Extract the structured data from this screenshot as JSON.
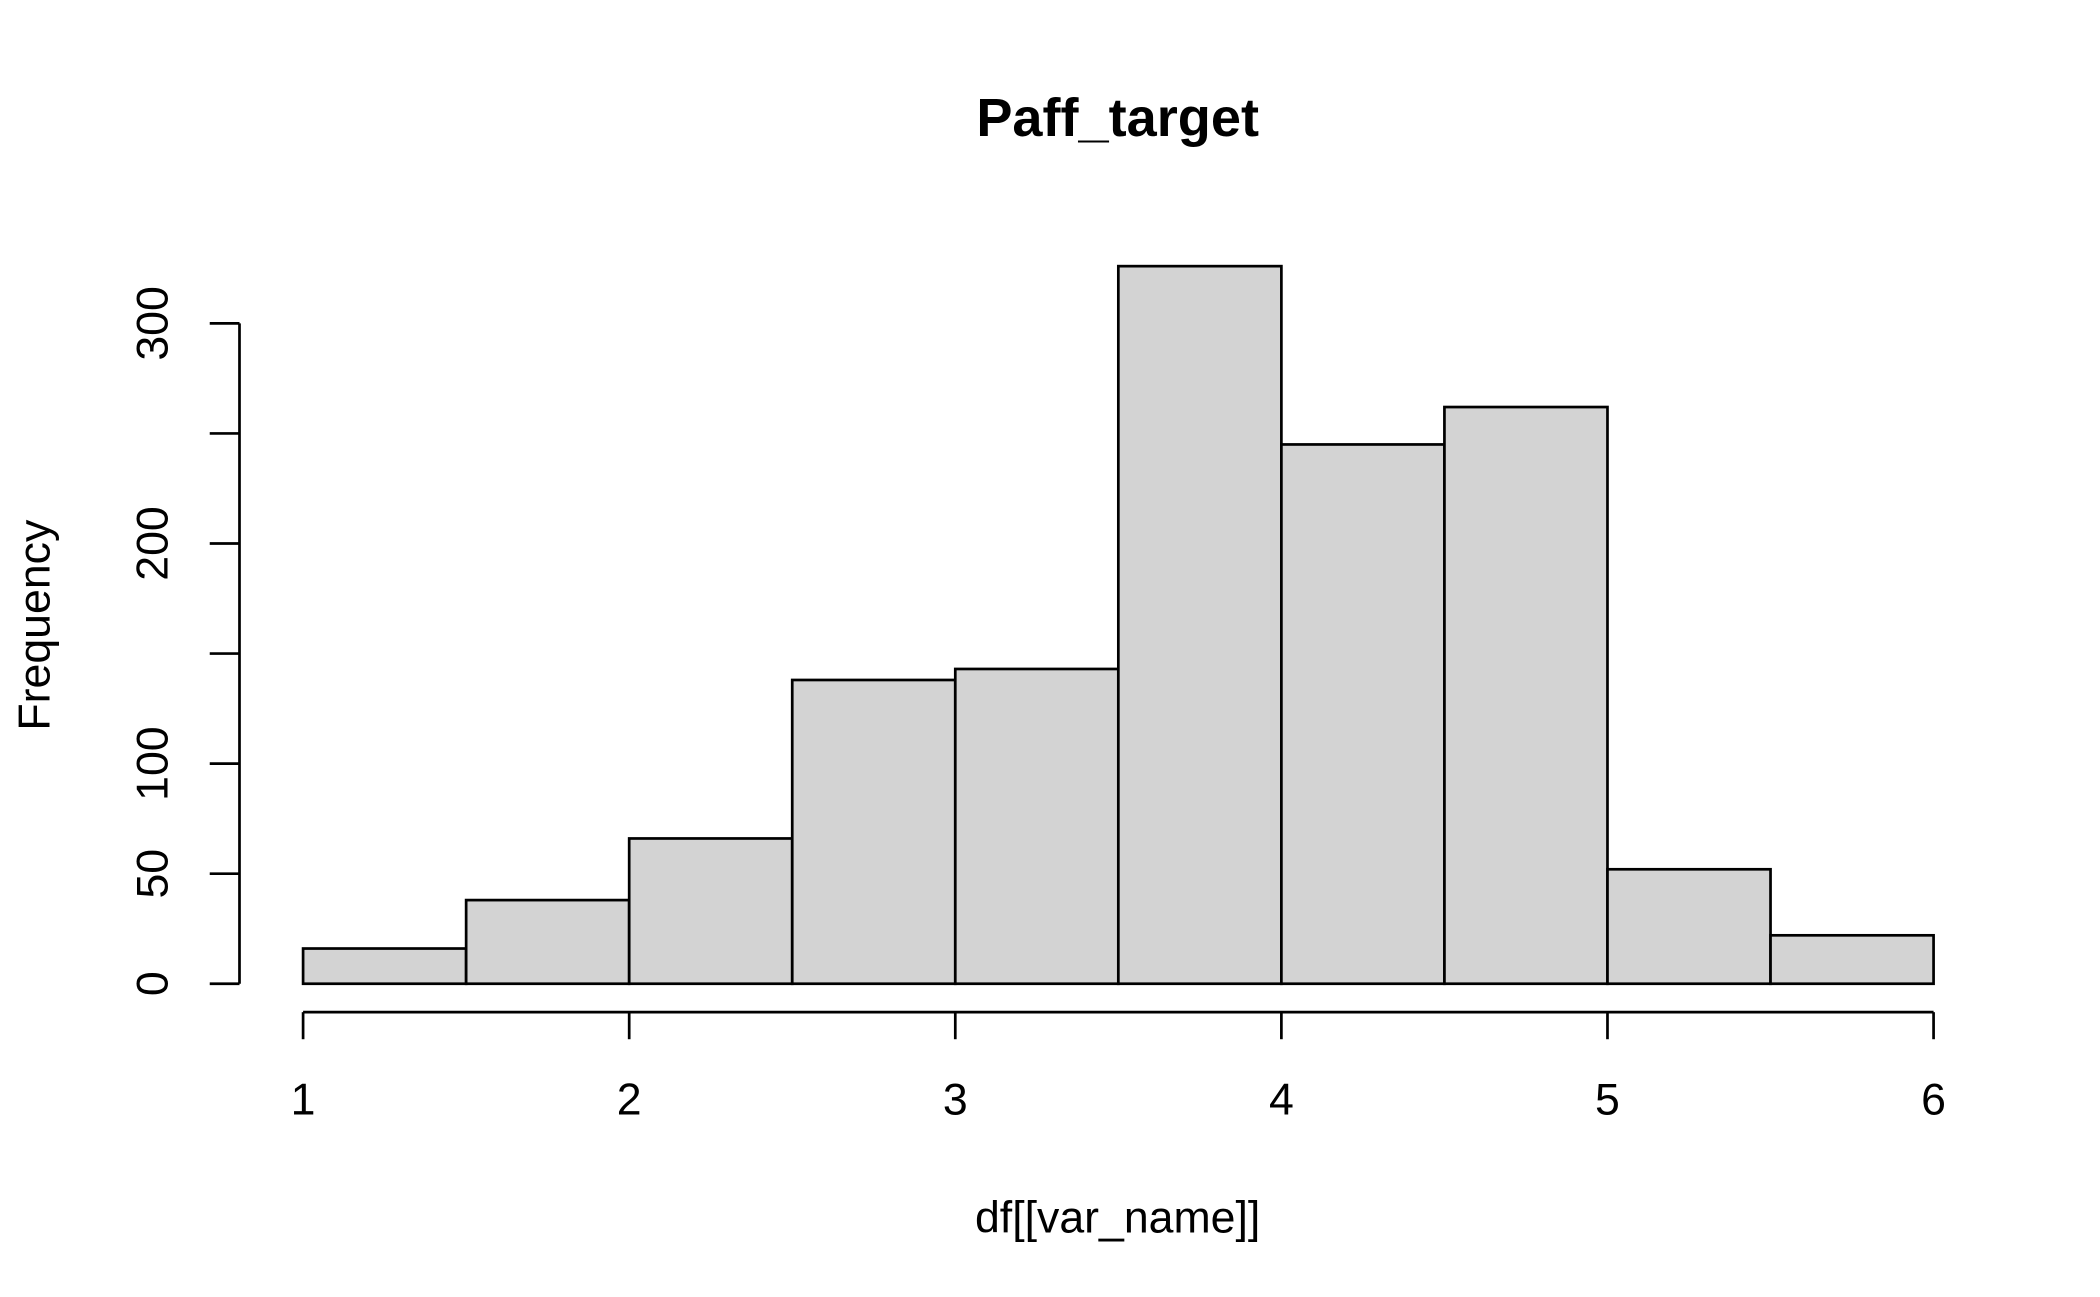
{
  "chart_data": {
    "type": "histogram",
    "title": "Paff_target",
    "x_label": "df[[var_name]]",
    "y_label": "Frequency",
    "bins": [
      1,
      1.5,
      2,
      2.5,
      3,
      3.5,
      4,
      4.5,
      5,
      5.5,
      6
    ],
    "values": [
      16,
      38,
      66,
      138,
      143,
      326,
      245,
      262,
      52,
      22
    ],
    "color": "#d3d3d3",
    "edge_color": "#000000",
    "xlim": [
      1,
      6
    ],
    "xticks": [
      1,
      2,
      3,
      4,
      5,
      6
    ],
    "ylim": [
      0,
      330
    ],
    "yticks": [
      0,
      50,
      100,
      {
        "value": 150,
        "label": null
      },
      200,
      {
        "value": 250,
        "label": null
      },
      300
    ],
    "grid": false
  }
}
